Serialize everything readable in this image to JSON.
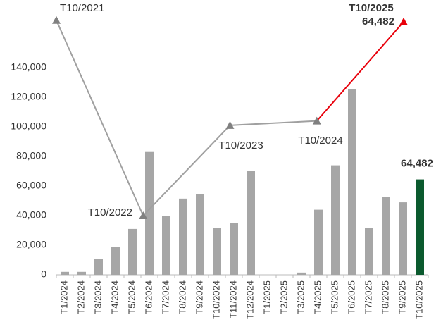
{
  "chart_data": {
    "type": "bar",
    "categories": [
      "T1/2024",
      "T2/2024",
      "T3/2024",
      "T4/2024",
      "T5/2024",
      "T6/2024",
      "T7/2024",
      "T8/2024",
      "T9/2024",
      "T10/2024",
      "T11/2024",
      "T12/2024",
      "T1/2025",
      "T2/2025",
      "T3/2025",
      "T4/2025",
      "T5/2025",
      "T6/2025",
      "T7/2025",
      "T8/2025",
      "T9/2025",
      "T10/2025"
    ],
    "values": [
      2000,
      2000,
      10500,
      19000,
      31000,
      83000,
      40000,
      51500,
      54500,
      31500,
      35000,
      70000,
      0,
      0,
      1500,
      44000,
      74000,
      125500,
      31500,
      52500,
      49000,
      64482
    ],
    "value_labels": [
      null,
      null,
      null,
      null,
      null,
      null,
      null,
      null,
      null,
      null,
      null,
      null,
      null,
      null,
      null,
      null,
      null,
      null,
      null,
      null,
      null,
      "64,482"
    ],
    "colors": [
      "#a6a6a6",
      "#a6a6a6",
      "#a6a6a6",
      "#a6a6a6",
      "#a6a6a6",
      "#a6a6a6",
      "#a6a6a6",
      "#a6a6a6",
      "#a6a6a6",
      "#a6a6a6",
      "#a6a6a6",
      "#a6a6a6",
      "#a6a6a6",
      "#a6a6a6",
      "#a6a6a6",
      "#a6a6a6",
      "#a6a6a6",
      "#a6a6a6",
      "#a6a6a6",
      "#a6a6a6",
      "#a6a6a6",
      "#0b5a2e"
    ],
    "ylim": [
      0,
      180000
    ],
    "yticks": [
      0,
      {
        "value": 20000,
        "label": "20,000"
      },
      {
        "value": 40000,
        "label": "40,000"
      },
      {
        "value": 60000,
        "label": "60,000"
      },
      {
        "value": 80000,
        "label": "80,000"
      },
      {
        "value": 100000,
        "label": "100,000"
      },
      {
        "value": 120000,
        "label": "120,000"
      },
      {
        "value": 140000,
        "label": "140,000"
      }
    ],
    "line": {
      "categories": [
        "T10/2021",
        "T10/2022",
        "T10/2023",
        "T10/2024",
        "T10/2025"
      ],
      "values": [
        172000,
        40000,
        101000,
        104000,
        171000
      ],
      "color": "#a0a0a0",
      "last_color": "#e8000b"
    },
    "annotations": [
      "64,482"
    ]
  }
}
